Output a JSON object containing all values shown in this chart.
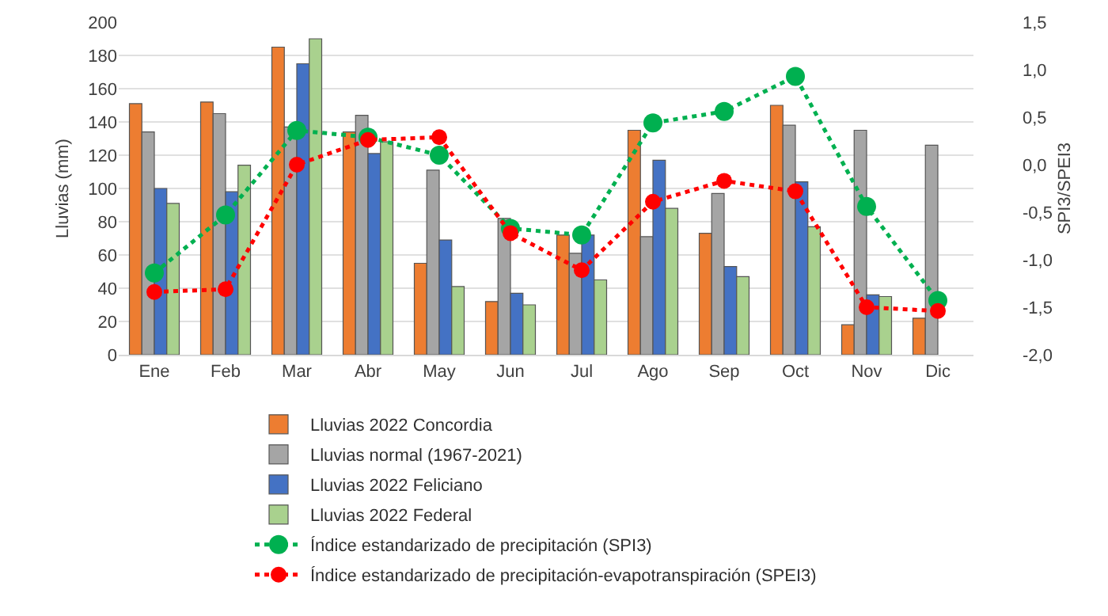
{
  "chart_data": {
    "type": "bar",
    "ylabel": "Lluvias (mm)",
    "y2label": "SPI3/SPEI3",
    "categories": [
      "Ene",
      "Feb",
      "Mar",
      "Abr",
      "May",
      "Jun",
      "Jul",
      "Ago",
      "Sep",
      "Oct",
      "Nov",
      "Dic"
    ],
    "series": [
      {
        "name": "Lluvias 2022 Concordia",
        "color": "#ed7d31",
        "values": [
          151,
          152,
          185,
          134,
          55,
          32,
          72,
          135,
          73,
          150,
          18,
          22
        ]
      },
      {
        "name": "Lluvias normal (1967-2021)",
        "color": "#a5a5a5",
        "values": [
          134,
          145,
          137,
          144,
          111,
          82,
          61,
          71,
          97,
          138,
          135,
          126
        ]
      },
      {
        "name": "Lluvias 2022 Feliciano",
        "color": "#4472c4",
        "values": [
          100,
          98,
          175,
          121,
          69,
          37,
          72,
          117,
          53,
          104,
          36,
          null
        ]
      },
      {
        "name": "Lluvias 2022 Federal",
        "color": "#a9d18e",
        "values": [
          91,
          114,
          190,
          128,
          41,
          30,
          45,
          88,
          47,
          77,
          35,
          null
        ]
      },
      {
        "name": "Índice estandarizado de precipitación (SPI3)",
        "type": "line",
        "axis": "y2",
        "color": "#00b050",
        "marker": "circle",
        "line_style": "dotted",
        "values": [
          -1.14,
          -0.53,
          0.36,
          0.29,
          0.1,
          -0.67,
          -0.74,
          0.44,
          0.56,
          0.93,
          -0.44,
          -1.43
        ]
      },
      {
        "name": "Índice estandarizado de precipitación-evapotranspiración (SPEI3)",
        "type": "line",
        "axis": "y2",
        "color": "#ff0000",
        "marker": "circle",
        "line_style": "dotted",
        "values": [
          -1.34,
          -1.31,
          0.0,
          0.26,
          0.29,
          -0.72,
          -1.11,
          -0.39,
          -0.17,
          -0.28,
          -1.5,
          -1.54
        ]
      }
    ],
    "ylim": [
      0,
      200
    ],
    "yticks": [
      0,
      20,
      40,
      60,
      80,
      100,
      120,
      140,
      160,
      180,
      200
    ],
    "y2lim": [
      -2,
      1.5
    ],
    "y2ticks": [
      {
        "value": -2,
        "label": "-2,0"
      },
      {
        "value": -1.5,
        "label": "-1,5"
      },
      {
        "value": -1,
        "label": "-1,0"
      },
      {
        "value": -0.5,
        "label": "-0,5"
      },
      {
        "value": 0,
        "label": "0,0"
      },
      {
        "value": 0.5,
        "label": "0,5"
      },
      {
        "value": 1,
        "label": "1,0"
      },
      {
        "value": 1.5,
        "label": "1,5"
      }
    ],
    "grid": "y",
    "legend": "bottom"
  }
}
